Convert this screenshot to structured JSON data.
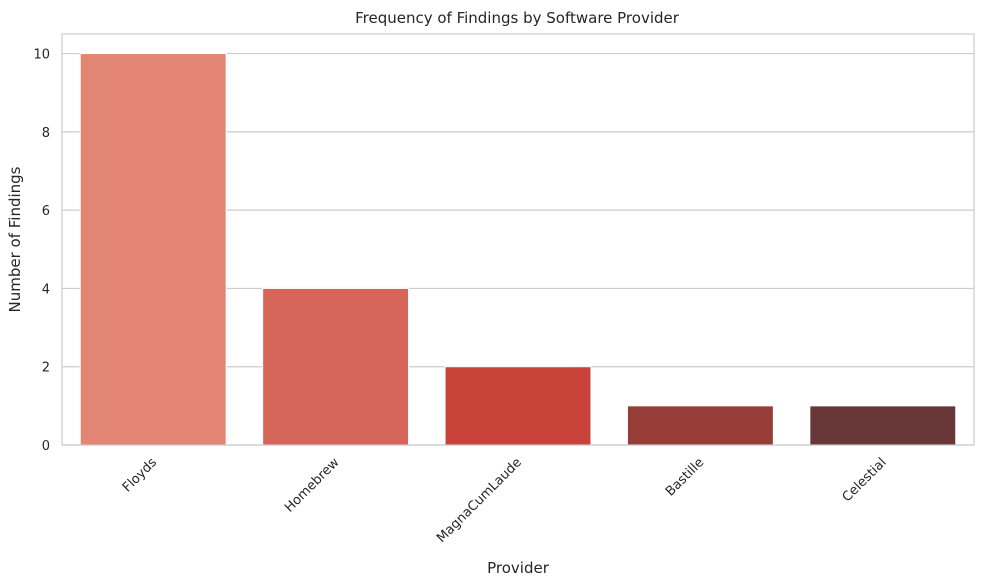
{
  "chart_data": {
    "type": "bar",
    "title": "Frequency of Findings by Software Provider",
    "xlabel": "Provider",
    "ylabel": "Number of Findings",
    "categories": [
      "Floyds",
      "Homebrew",
      "MagnaCumLaude",
      "Bastille",
      "Celestial"
    ],
    "values": [
      10,
      4,
      2,
      1,
      1
    ],
    "colors": [
      "#e28572",
      "#d6665a",
      "#c8443a",
      "#973d38",
      "#683636"
    ],
    "ylim": [
      0,
      10.5
    ],
    "yticks": [
      0,
      2,
      4,
      6,
      8,
      10
    ],
    "grid": "horizontal",
    "x_tick_rotation": 45
  }
}
